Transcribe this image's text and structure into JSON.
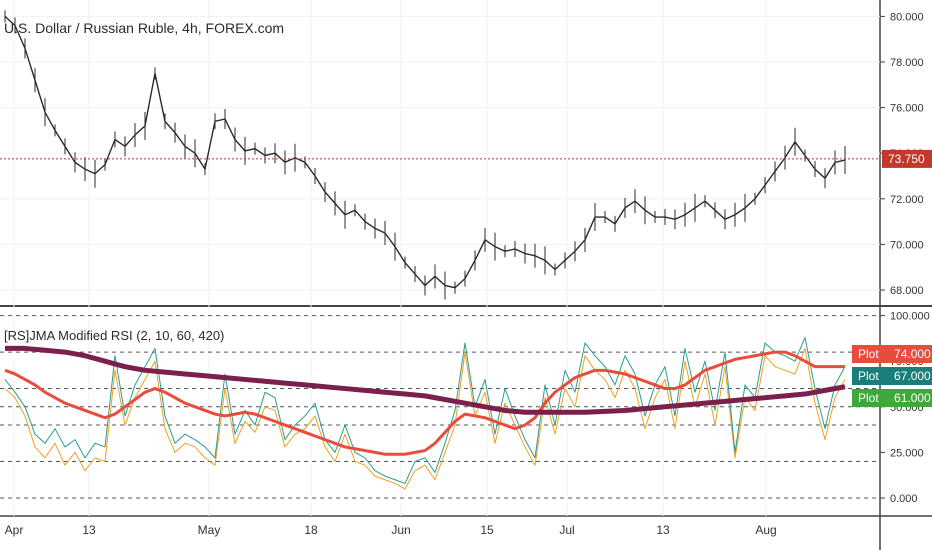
{
  "chart_data": [
    {
      "type": "line",
      "title": "U.S. Dollar / Russian Ruble, 4h, FOREX.com",
      "y_ticks": [
        "80.000",
        "78.000",
        "76.000",
        "74.000",
        "72.000",
        "70.000",
        "68.000"
      ],
      "ylim": [
        67.0,
        81.0
      ],
      "x_ticks": [
        "Apr",
        "13",
        "May",
        "18",
        "Jun",
        "15",
        "Jul",
        "13",
        "Aug"
      ],
      "current_price": {
        "value": 73.75,
        "label": "73.750",
        "color": "#c0392b"
      },
      "series": [
        {
          "color": "#2b2b2b",
          "x": [
            0,
            10,
            20,
            30,
            40,
            50,
            60,
            70,
            80,
            90,
            100,
            110,
            120,
            130,
            140,
            150,
            160,
            170,
            180,
            190,
            200,
            210,
            220,
            230,
            240,
            250,
            260,
            270,
            280,
            290,
            300,
            310,
            320,
            330,
            340,
            350,
            360,
            370,
            380,
            390,
            400,
            410,
            420,
            430,
            440,
            450,
            460,
            470,
            480,
            490,
            500,
            510,
            520,
            530,
            540,
            550,
            560,
            570,
            580,
            590,
            600,
            610,
            620,
            630,
            640,
            650,
            660,
            670,
            680,
            690,
            700,
            710,
            720,
            730,
            740,
            750,
            760,
            770,
            780,
            790,
            800,
            810,
            820,
            830,
            840
          ],
          "values": [
            80.0,
            79.6,
            78.6,
            77.2,
            75.8,
            75.0,
            74.3,
            73.6,
            73.3,
            73.1,
            73.5,
            74.6,
            74.3,
            74.8,
            75.2,
            77.5,
            75.4,
            74.9,
            74.3,
            74.0,
            73.3,
            75.4,
            75.5,
            74.6,
            74.1,
            74.2,
            73.9,
            74.0,
            73.6,
            73.8,
            73.6,
            73.0,
            72.3,
            71.8,
            71.3,
            71.5,
            71.0,
            70.7,
            70.5,
            69.9,
            69.2,
            68.7,
            68.2,
            68.6,
            68.2,
            68.1,
            68.5,
            69.3,
            70.2,
            69.9,
            69.7,
            69.8,
            69.6,
            69.5,
            69.3,
            68.9,
            69.3,
            69.7,
            70.2,
            71.2,
            71.2,
            70.9,
            71.6,
            71.9,
            71.5,
            71.2,
            71.2,
            71.1,
            71.3,
            71.6,
            71.9,
            71.5,
            71.1,
            71.3,
            71.6,
            72.0,
            72.6,
            73.2,
            73.8,
            74.5,
            73.9,
            73.3,
            72.9,
            73.6,
            73.7
          ]
        }
      ]
    },
    {
      "type": "line",
      "title": "[RS]JMA Modified RSI (2, 10, 60, 420)",
      "y_ticks": [
        "100.000",
        "75.000",
        "50.000",
        "25.000",
        "0.000"
      ],
      "ylim": [
        -7,
        100
      ],
      "levels": [
        0,
        20,
        40,
        50,
        60,
        80,
        100
      ],
      "x_ticks": [
        "Apr",
        "13",
        "May",
        "18",
        "Jun",
        "15",
        "Jul",
        "13",
        "Aug"
      ],
      "series": [
        {
          "color": "#f0a020",
          "x": [
            0,
            10,
            20,
            30,
            40,
            50,
            60,
            70,
            80,
            90,
            100,
            110,
            120,
            130,
            140,
            150,
            160,
            170,
            180,
            190,
            200,
            210,
            220,
            230,
            240,
            250,
            260,
            270,
            280,
            290,
            300,
            310,
            320,
            330,
            340,
            350,
            360,
            370,
            380,
            390,
            400,
            410,
            420,
            430,
            440,
            450,
            460,
            470,
            480,
            490,
            500,
            510,
            520,
            530,
            540,
            550,
            560,
            570,
            580,
            590,
            600,
            610,
            620,
            630,
            640,
            650,
            660,
            670,
            680,
            690,
            700,
            710,
            720,
            730,
            740,
            750,
            760,
            770,
            780,
            790,
            800,
            810,
            820,
            830,
            840
          ],
          "values": [
            60,
            55,
            45,
            28,
            22,
            30,
            18,
            25,
            15,
            22,
            20,
            70,
            40,
            55,
            65,
            75,
            38,
            25,
            30,
            28,
            22,
            18,
            60,
            30,
            42,
            36,
            50,
            48,
            28,
            35,
            38,
            45,
            28,
            20,
            35,
            20,
            18,
            12,
            10,
            8,
            5,
            15,
            18,
            10,
            25,
            40,
            80,
            45,
            58,
            30,
            52,
            40,
            28,
            18,
            55,
            35,
            60,
            50,
            78,
            70,
            65,
            55,
            70,
            60,
            38,
            55,
            65,
            38,
            75,
            50,
            68,
            40,
            72,
            22,
            55,
            48,
            78,
            72,
            70,
            68,
            82,
            52,
            32,
            55,
            65
          ]
        },
        {
          "color": "#2a9d8f",
          "x": [
            0,
            10,
            20,
            30,
            40,
            50,
            60,
            70,
            80,
            90,
            100,
            110,
            120,
            130,
            140,
            150,
            160,
            170,
            180,
            190,
            200,
            210,
            220,
            230,
            240,
            250,
            260,
            270,
            280,
            290,
            300,
            310,
            320,
            330,
            340,
            350,
            360,
            370,
            380,
            390,
            400,
            410,
            420,
            430,
            440,
            450,
            460,
            470,
            480,
            490,
            500,
            510,
            520,
            530,
            540,
            550,
            560,
            570,
            580,
            590,
            600,
            610,
            620,
            630,
            640,
            650,
            660,
            670,
            680,
            690,
            700,
            710,
            720,
            730,
            740,
            750,
            760,
            770,
            780,
            790,
            800,
            810,
            820,
            830,
            840
          ],
          "values": [
            65,
            58,
            50,
            35,
            30,
            38,
            28,
            32,
            22,
            30,
            28,
            78,
            45,
            62,
            72,
            82,
            45,
            30,
            35,
            32,
            28,
            22,
            68,
            35,
            48,
            40,
            58,
            55,
            32,
            40,
            45,
            52,
            32,
            25,
            40,
            25,
            22,
            15,
            12,
            10,
            8,
            20,
            22,
            14,
            30,
            48,
            85,
            50,
            65,
            35,
            60,
            45,
            32,
            22,
            62,
            40,
            70,
            58,
            85,
            78,
            72,
            62,
            78,
            68,
            45,
            62,
            72,
            45,
            82,
            58,
            75,
            48,
            80,
            25,
            62,
            55,
            85,
            80,
            78,
            75,
            88,
            60,
            38,
            62,
            72
          ]
        },
        {
          "color": "#e74c3c",
          "x": [
            0,
            10,
            20,
            30,
            40,
            50,
            60,
            70,
            80,
            90,
            100,
            110,
            120,
            130,
            140,
            150,
            160,
            170,
            180,
            190,
            200,
            210,
            220,
            230,
            240,
            250,
            260,
            270,
            280,
            290,
            300,
            310,
            320,
            330,
            340,
            350,
            360,
            370,
            380,
            390,
            400,
            410,
            420,
            430,
            440,
            450,
            460,
            470,
            480,
            490,
            500,
            510,
            520,
            530,
            540,
            550,
            560,
            570,
            580,
            590,
            600,
            610,
            620,
            630,
            640,
            650,
            660,
            670,
            680,
            690,
            700,
            710,
            720,
            730,
            740,
            750,
            760,
            770,
            780,
            790,
            800,
            810,
            820,
            830,
            840
          ],
          "values": [
            70,
            68,
            65,
            62,
            58,
            55,
            52,
            50,
            48,
            46,
            44,
            46,
            50,
            54,
            58,
            60,
            58,
            55,
            52,
            50,
            48,
            46,
            45,
            46,
            47,
            46,
            44,
            42,
            40,
            38,
            36,
            34,
            32,
            30,
            28,
            27,
            26,
            25,
            24,
            24,
            24,
            25,
            26,
            30,
            36,
            42,
            46,
            45,
            44,
            42,
            40,
            38,
            40,
            44,
            52,
            58,
            62,
            66,
            68,
            70,
            70,
            69,
            68,
            66,
            64,
            62,
            60,
            60,
            62,
            66,
            70,
            72,
            74,
            76,
            77,
            78,
            79,
            80,
            80,
            78,
            75,
            72,
            72,
            72,
            72
          ]
        },
        {
          "color": "#7b1f4e",
          "x": [
            0,
            20,
            40,
            60,
            80,
            100,
            120,
            140,
            160,
            180,
            200,
            220,
            240,
            260,
            280,
            300,
            320,
            340,
            360,
            380,
            400,
            420,
            440,
            460,
            480,
            500,
            520,
            540,
            560,
            580,
            600,
            620,
            640,
            660,
            680,
            700,
            720,
            740,
            760,
            780,
            800,
            820,
            840
          ],
          "values": [
            82,
            82,
            81,
            80,
            78,
            75,
            72,
            70,
            69,
            68,
            67,
            66,
            65,
            64,
            63,
            62,
            61,
            60,
            59,
            58,
            57,
            56,
            54,
            52,
            50,
            48,
            47,
            47,
            47,
            47,
            47.5,
            48,
            49,
            50,
            51,
            52,
            53,
            54,
            55,
            56,
            57,
            59,
            61
          ]
        }
      ],
      "value_tags": [
        {
          "label": "Plot",
          "value": "74.000",
          "color": "#e74c3c"
        },
        {
          "label": "Plot",
          "value": "67.000",
          "color": "#1a7f7a"
        },
        {
          "label": "Plot",
          "value": "61.000",
          "color": "#3ea83a"
        }
      ]
    }
  ]
}
